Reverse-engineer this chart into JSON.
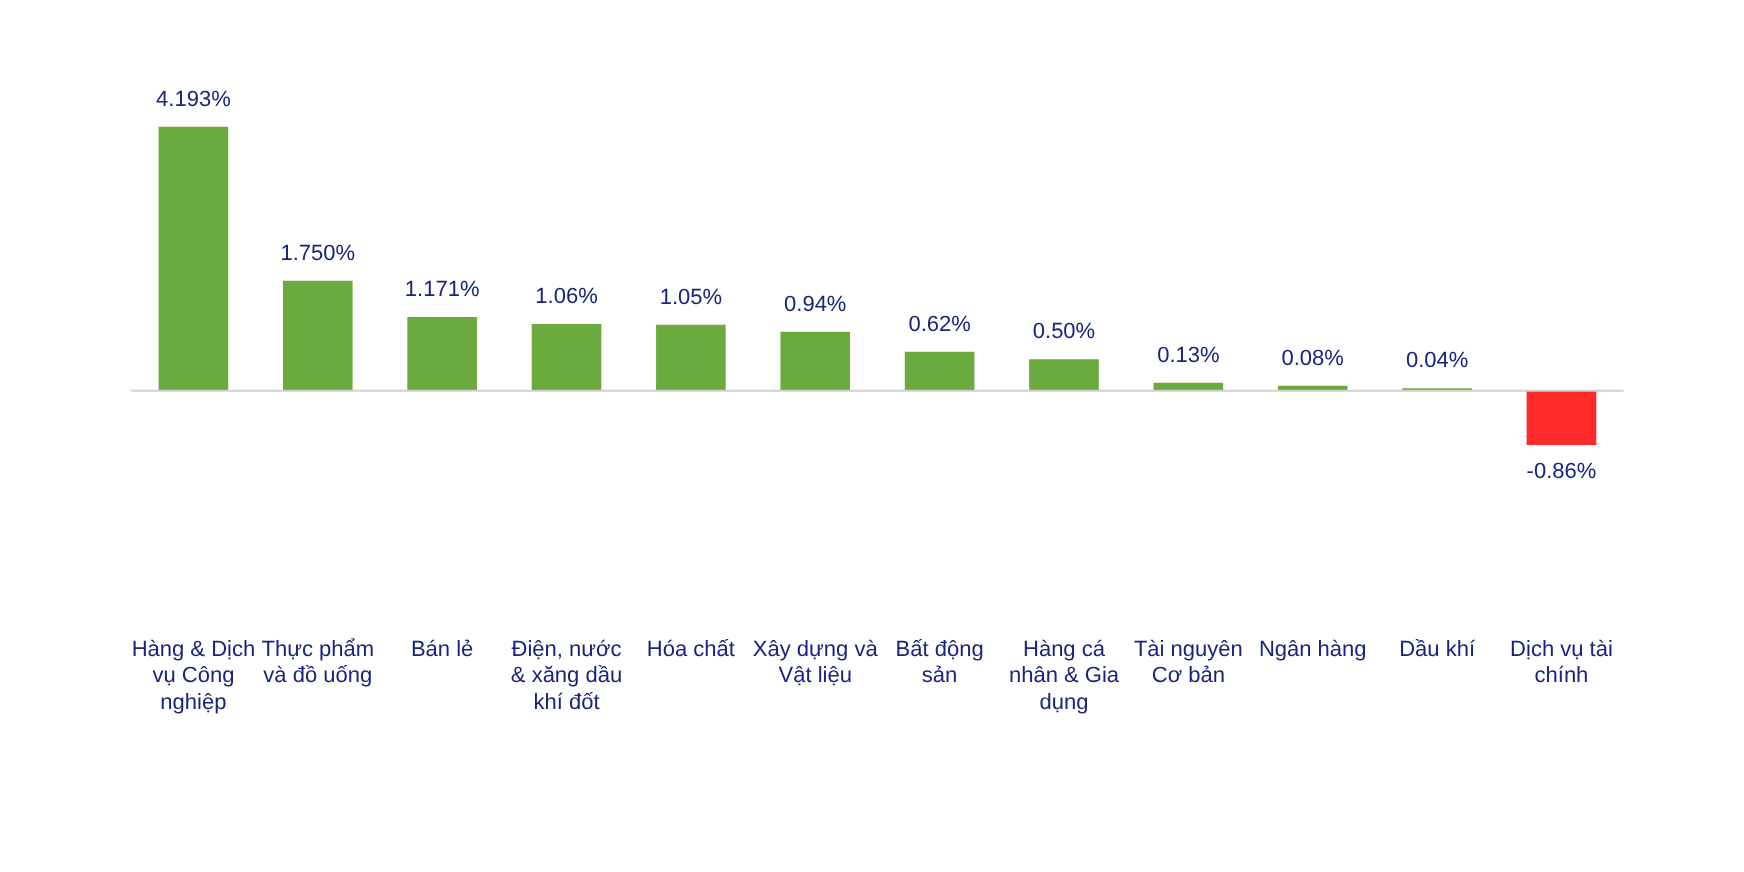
{
  "chart_data": {
    "type": "bar",
    "categories": [
      "Hàng & Dịch vụ Công nghiệp",
      "Thực phẩm và đồ uống",
      "Bán lẻ",
      "Điện, nước & xăng dầu khí đốt",
      "Hóa chất",
      "Xây dựng và Vật liệu",
      "Bất động sản",
      "Hàng cá nhân & Gia dụng",
      "Tài nguyên Cơ bản",
      "Ngân hàng",
      "Dầu khí",
      "Dịch vụ tài chính"
    ],
    "values": [
      4.193,
      1.75,
      1.171,
      1.06,
      1.05,
      0.94,
      0.62,
      0.5,
      0.13,
      0.08,
      0.04,
      -0.86
    ],
    "colors": [
      "#6aaa3e",
      "#6aaa3e",
      "#6aaa3e",
      "#6aaa3e",
      "#6aaa3e",
      "#6aaa3e",
      "#6aaa3e",
      "#6aaa3e",
      "#6aaa3e",
      "#6aaa3e",
      "#6aaa3e",
      "#ff2a2a"
    ],
    "value_labels": [
      "4.193%",
      "1.750%",
      "1.171%",
      "1.06%",
      "1.05%",
      "0.94%",
      "0.62%",
      "0.50%",
      "0.13%",
      "0.08%",
      "0.04%",
      "-0.86%"
    ],
    "tick_labels": "x"
  }
}
